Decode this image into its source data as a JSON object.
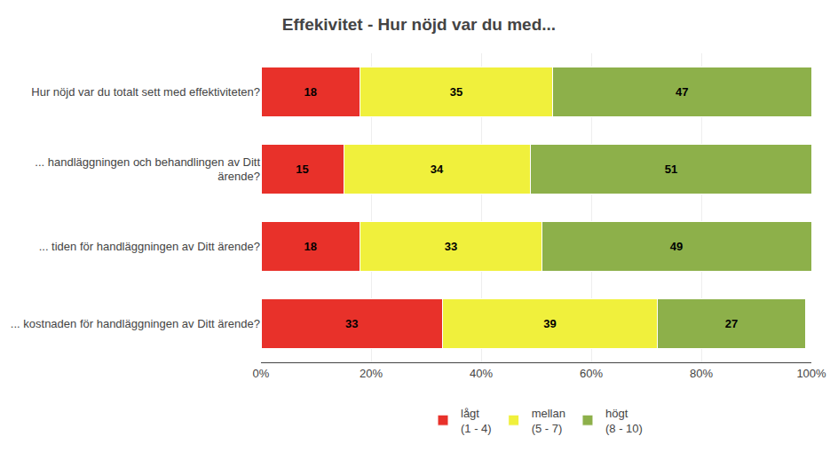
{
  "chart_data": {
    "type": "bar",
    "orientation": "horizontal",
    "stacked": true,
    "title": "Effekivitet - Hur nöjd var du med...",
    "categories": [
      "Hur nöjd var du totalt sett med effektiviteten?",
      "... handläggningen och behandlingen av Ditt\närende?",
      "... tiden för handläggningen av Ditt ärende?",
      "... kostnaden för handläggningen av Ditt ärende?"
    ],
    "series": [
      {
        "name": "lågt\n(1 - 4)",
        "color": "#e8312a",
        "values": [
          18,
          15,
          18,
          33
        ]
      },
      {
        "name": "mellan\n(5 - 7)",
        "color": "#f0f03c",
        "values": [
          35,
          34,
          33,
          39
        ]
      },
      {
        "name": "högt\n(8 - 10)",
        "color": "#8db04a",
        "values": [
          47,
          51,
          49,
          27
        ]
      }
    ],
    "xlim": [
      0,
      100
    ],
    "xticks": [
      {
        "value": 0,
        "label": "0%"
      },
      {
        "value": 20,
        "label": "20%"
      },
      {
        "value": 40,
        "label": "40%"
      },
      {
        "value": 60,
        "label": "60%"
      },
      {
        "value": 80,
        "label": "80%"
      },
      {
        "value": 100,
        "label": "100%"
      }
    ],
    "grid": true,
    "data_labels": true,
    "legend": "bottom"
  }
}
